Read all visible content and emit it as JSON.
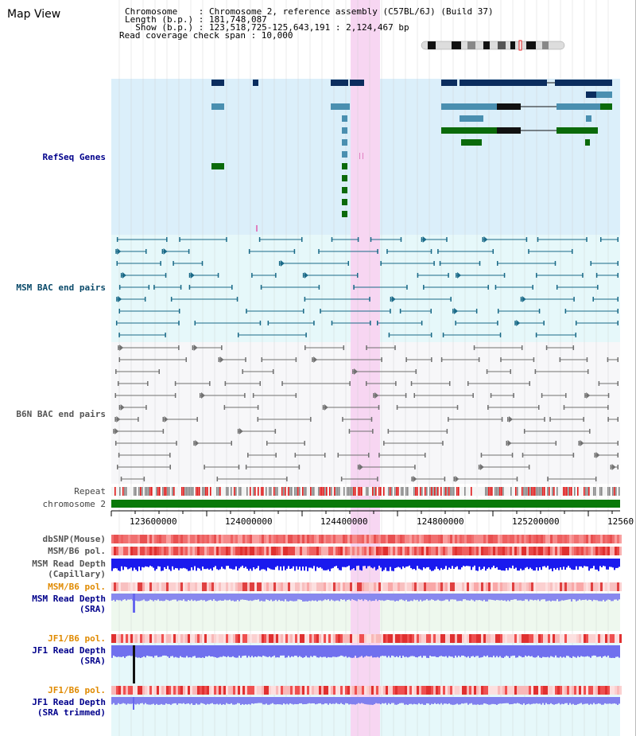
{
  "title": "Map View",
  "info": {
    "chromosome": "Chromosome    : Chromosome 2, reference assembly (C57BL/6J) (Build 37)",
    "length": "Length (b.p.) : 181,748,087",
    "show": "  Show (b.p.) : 123,518,725-125,643,191 : 2,124,467 bp",
    "coverage": "Read coverage check span : 10,000"
  },
  "tracks": {
    "refseq": "RefSeq Genes",
    "msm_bac": "MSM BAC end pairs",
    "b6n_bac": "B6N BAC end pairs",
    "repeat": "Repeat",
    "chromosome": "chromosome 2",
    "dbsnp": "dbSNP(Mouse)",
    "msm_b6_pol_1": "MSM/B6 pol.",
    "msm_depth_cap_1": "MSM Read Depth",
    "msm_depth_cap_2": "(Capillary)",
    "msm_b6_pol_2": "MSM/B6 pol.",
    "msm_depth_sra_1": "MSM Read Depth",
    "msm_depth_sra_2": "(SRA)",
    "jf1_b6_pol_1": "JF1/B6 pol.",
    "jf1_depth_sra_1": "JF1 Read Depth",
    "jf1_depth_sra_2": "(SRA)",
    "jf1_b6_pol_2": "JF1/B6 pol.",
    "jf1_depth_trim_1": "JF1 Read Depth",
    "jf1_depth_trim_2": "(SRA trimmed)"
  },
  "axis": {
    "ticks": [
      "123600000",
      "124000000",
      "124400000",
      "124800000",
      "125200000",
      "12560"
    ]
  },
  "colors": {
    "refseq_bg": "#dbeffa",
    "bac_bg": "#e6f8fa",
    "highlight": "#f7d6f2",
    "chromosome_bar": "#0a7a0a",
    "gene_dark": "#0b2d5e",
    "gene_light": "#4a8fb0",
    "gene_green": "#0a6a0a"
  }
}
